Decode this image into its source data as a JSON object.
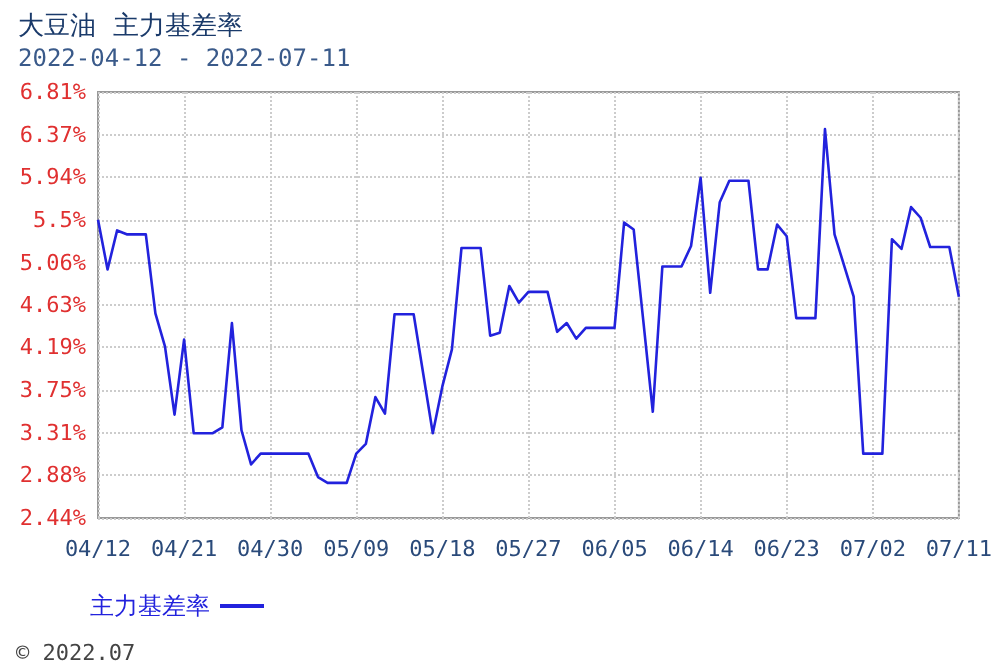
{
  "chart_data": {
    "type": "line",
    "title": "大豆油  主力基差率",
    "subtitle": "2022-04-12 - 2022-07-11",
    "annotations": [
      "© 2022.07"
    ],
    "x": [
      "2022-04-12",
      "2022-04-13",
      "2022-04-14",
      "2022-04-15",
      "2022-04-17",
      "2022-04-18",
      "2022-04-19",
      "2022-04-20",
      "2022-04-21",
      "2022-04-22",
      "2022-04-24",
      "2022-04-25",
      "2022-04-26",
      "2022-04-27",
      "2022-04-28",
      "2022-04-29",
      "2022-05-04",
      "2022-05-05",
      "2022-05-06",
      "2022-05-08",
      "2022-05-09",
      "2022-05-10",
      "2022-05-11",
      "2022-05-12",
      "2022-05-13",
      "2022-05-15",
      "2022-05-16",
      "2022-05-17",
      "2022-05-18",
      "2022-05-19",
      "2022-05-20",
      "2022-05-22",
      "2022-05-23",
      "2022-05-24",
      "2022-05-25",
      "2022-05-26",
      "2022-05-27",
      "2022-05-29",
      "2022-05-30",
      "2022-05-31",
      "2022-06-01",
      "2022-06-02",
      "2022-06-05",
      "2022-06-06",
      "2022-06-07",
      "2022-06-08",
      "2022-06-09",
      "2022-06-10",
      "2022-06-12",
      "2022-06-13",
      "2022-06-14",
      "2022-06-15",
      "2022-06-16",
      "2022-06-17",
      "2022-06-19",
      "2022-06-20",
      "2022-06-21",
      "2022-06-22",
      "2022-06-23",
      "2022-06-24",
      "2022-06-26",
      "2022-06-27",
      "2022-06-28",
      "2022-06-30",
      "2022-07-01",
      "2022-07-03",
      "2022-07-04",
      "2022-07-05",
      "2022-07-06",
      "2022-07-07",
      "2022-07-08",
      "2022-07-10",
      "2022-07-11"
    ],
    "series": [
      {
        "name": "主力基差率",
        "color": "#2222dd",
        "values": [
          5.5,
          4.99,
          5.39,
          5.35,
          5.35,
          4.54,
          4.2,
          3.5,
          4.27,
          3.31,
          3.31,
          3.37,
          4.44,
          3.34,
          2.99,
          3.1,
          3.1,
          2.86,
          2.8,
          2.8,
          3.1,
          3.2,
          3.68,
          3.51,
          4.53,
          4.53,
          3.92,
          3.31,
          3.79,
          4.17,
          5.21,
          5.21,
          4.31,
          4.34,
          4.82,
          4.65,
          4.76,
          4.76,
          4.35,
          4.44,
          4.28,
          4.39,
          4.39,
          5.47,
          5.4,
          4.47,
          3.53,
          5.02,
          5.02,
          5.23,
          5.93,
          4.75,
          5.68,
          5.9,
          5.9,
          4.99,
          4.99,
          5.45,
          5.33,
          4.49,
          4.49,
          6.43,
          5.35,
          4.71,
          3.1,
          3.1,
          5.3,
          5.2,
          5.63,
          5.52,
          5.22,
          5.22,
          4.71
        ]
      }
    ],
    "xlim": [
      "2022-04-12",
      "2022-07-11"
    ],
    "xticks": [
      {
        "value": "2022-04-12",
        "label": "04/12"
      },
      {
        "value": "2022-04-21",
        "label": "04/21"
      },
      {
        "value": "2022-04-30",
        "label": "04/30"
      },
      {
        "value": "2022-05-09",
        "label": "05/09"
      },
      {
        "value": "2022-05-18",
        "label": "05/18"
      },
      {
        "value": "2022-05-27",
        "label": "05/27"
      },
      {
        "value": "2022-06-05",
        "label": "06/05"
      },
      {
        "value": "2022-06-14",
        "label": "06/14"
      },
      {
        "value": "2022-06-23",
        "label": "06/23"
      },
      {
        "value": "2022-07-02",
        "label": "07/02"
      },
      {
        "value": "2022-07-11",
        "label": "07/11"
      }
    ],
    "ylim": [
      2.44,
      6.81
    ],
    "yticks": [
      {
        "value": 2.44,
        "label": "2.44%"
      },
      {
        "value": 2.88,
        "label": "2.88%"
      },
      {
        "value": 3.31,
        "label": "3.31%"
      },
      {
        "value": 3.75,
        "label": "3.75%"
      },
      {
        "value": 4.19,
        "label": "4.19%"
      },
      {
        "value": 4.63,
        "label": "4.63%"
      },
      {
        "value": 5.06,
        "label": "5.06%"
      },
      {
        "value": 5.5,
        "label": "5.5%"
      },
      {
        "value": 5.94,
        "label": "5.94%"
      },
      {
        "value": 6.37,
        "label": "6.37%"
      },
      {
        "value": 6.81,
        "label": "6.81%"
      }
    ],
    "grid": true,
    "legend": "bottom left",
    "marker": "none",
    "line_style": "solid"
  }
}
